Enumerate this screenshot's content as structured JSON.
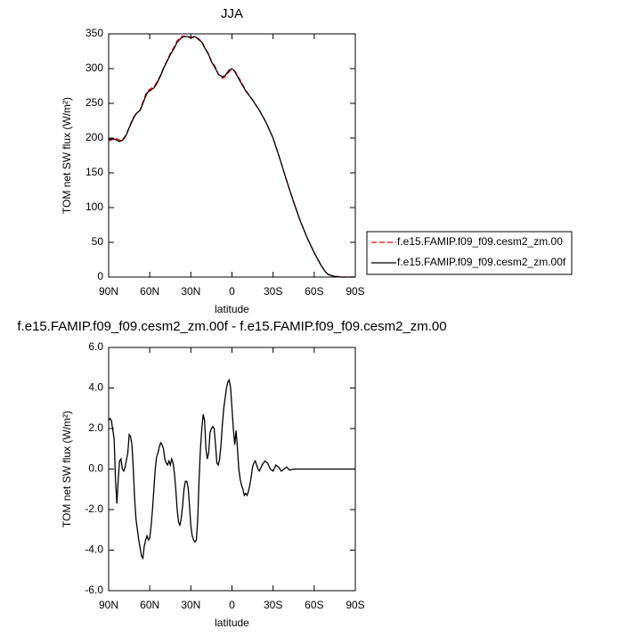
{
  "chart_data": [
    {
      "type": "line",
      "title": "JJA",
      "xlabel": "latitude",
      "ylabel": "TOM net SW flux (W/m²)",
      "x": [
        90,
        87,
        85,
        82,
        80,
        77,
        75,
        72,
        70,
        67,
        65,
        62,
        60,
        57,
        55,
        52,
        50,
        47,
        45,
        42,
        40,
        37,
        35,
        32,
        30,
        27,
        25,
        22,
        20,
        17,
        15,
        12,
        10,
        7,
        5,
        2,
        0,
        -2,
        -5,
        -8,
        -10,
        -15,
        -20,
        -25,
        -30,
        -35,
        -40,
        -45,
        -50,
        -55,
        -60,
        -65,
        -68,
        -70,
        -73,
        -75,
        -80,
        -85,
        -90
      ],
      "series": [
        {
          "name": "f.e15.FAMIP.f09_f09.cesm2_zm.00",
          "color": "#ff0000",
          "dash": true,
          "values": [
            196,
            198,
            200,
            197,
            196,
            204,
            216,
            230,
            234,
            241,
            252,
            268,
            270,
            274,
            280,
            291,
            301,
            313,
            322,
            332,
            340,
            346,
            347,
            345,
            344,
            345,
            344,
            339,
            331,
            321,
            311,
            302,
            292,
            286,
            288,
            296,
            298,
            297,
            287,
            276,
            269,
            255,
            240,
            222,
            200,
            170,
            138,
            108,
            80,
            56,
            35,
            17,
            8,
            4,
            2,
            1,
            0,
            0,
            0
          ]
        },
        {
          "name": "f.e15.FAMIP.f09_f09.cesm2_zm.00f",
          "color": "#000000",
          "dash": false,
          "values": [
            198,
            199,
            198,
            195,
            197,
            205,
            215,
            228,
            235,
            240,
            250,
            265,
            268,
            272,
            278,
            290,
            300,
            312,
            320,
            330,
            338,
            344,
            346,
            346,
            345,
            346,
            343,
            338,
            330,
            320,
            310,
            300,
            292,
            288,
            290,
            298,
            300,
            296,
            285,
            275,
            268,
            255,
            240,
            222,
            200,
            170,
            138,
            108,
            80,
            56,
            35,
            17,
            8,
            4,
            2,
            1,
            0,
            0,
            0
          ]
        }
      ],
      "xlim": [
        90,
        -90
      ],
      "xticks": [
        {
          "value": 90,
          "label": "90N"
        },
        {
          "value": 60,
          "label": "60N"
        },
        {
          "value": 30,
          "label": "30N"
        },
        0,
        {
          "value": -30,
          "label": "30S"
        },
        {
          "value": -60,
          "label": "60S"
        },
        {
          "value": -90,
          "label": "90S"
        }
      ],
      "ylim": [
        0,
        350
      ],
      "yticks": [
        0,
        50,
        100,
        150,
        200,
        250,
        300,
        350
      ],
      "legend": "right"
    },
    {
      "type": "line",
      "title": "f.e15.FAMIP.f09_f09.cesm2_zm.00f - f.e15.FAMIP.f09_f09.cesm2_zm.00",
      "xlabel": "latitude",
      "ylabel": "TOM net SW flux (W/m²)",
      "x": [
        90,
        89,
        88,
        86,
        85,
        84,
        83,
        82,
        81,
        80,
        79,
        78,
        76,
        75,
        74,
        73,
        72,
        71,
        70,
        68,
        66,
        65,
        64,
        63,
        62,
        61,
        60,
        59,
        58,
        57,
        56,
        55,
        54,
        53,
        52,
        51,
        50,
        49,
        48,
        47,
        46,
        45,
        44,
        43,
        42,
        41,
        40,
        39,
        38,
        37,
        36,
        35,
        34,
        33,
        32,
        31,
        30,
        29,
        28,
        27,
        26,
        25,
        24,
        23,
        22,
        21,
        20,
        19,
        18,
        17,
        16,
        15,
        14,
        13,
        12,
        11,
        10,
        9,
        8,
        7,
        6,
        5,
        4,
        3,
        2,
        1,
        0,
        -1,
        -2,
        -3,
        -4,
        -5,
        -6,
        -7,
        -8,
        -9,
        -10,
        -11,
        -12,
        -13,
        -14,
        -15,
        -16,
        -17,
        -18,
        -19,
        -20,
        -22,
        -24,
        -26,
        -28,
        -30,
        -32,
        -34,
        -36,
        -38,
        -40,
        -42,
        -45,
        -50,
        -60,
        -70,
        -80,
        -90
      ],
      "series": [
        {
          "color": "#000000",
          "dash": false,
          "values": [
            2.4,
            2.5,
            2.4,
            1.5,
            -0.5,
            -1.7,
            -0.5,
            0.4,
            0.5,
            0.0,
            -0.1,
            0.1,
            0.8,
            1.7,
            1.6,
            1.2,
            0.0,
            -1.5,
            -2.5,
            -3.5,
            -4.3,
            -4.4,
            -3.8,
            -3.5,
            -3.3,
            -3.5,
            -3.4,
            -2.8,
            -2.0,
            -1.0,
            0.0,
            0.6,
            0.8,
            1.1,
            1.3,
            1.2,
            1.0,
            0.5,
            0.3,
            0.2,
            0.4,
            0.2,
            0.5,
            0.3,
            -0.2,
            -1.0,
            -2.0,
            -2.6,
            -2.8,
            -2.4,
            -1.8,
            -1.0,
            -0.6,
            -0.6,
            -0.9,
            -1.8,
            -2.8,
            -3.3,
            -3.5,
            -3.6,
            -3.5,
            -2.5,
            -0.5,
            1.0,
            2.0,
            2.7,
            2.4,
            1.0,
            0.5,
            0.8,
            1.8,
            2.0,
            2.1,
            2.0,
            1.2,
            0.3,
            0.2,
            0.5,
            1.2,
            2.2,
            3.0,
            3.5,
            4.0,
            4.3,
            4.4,
            4.0,
            3.0,
            2.0,
            1.2,
            1.9,
            1.0,
            0.0,
            -0.5,
            -0.8,
            -1.0,
            -1.3,
            -1.2,
            -1.3,
            -1.1,
            -0.8,
            -0.4,
            0.1,
            0.3,
            0.4,
            0.2,
            0.0,
            -0.1,
            0.2,
            0.4,
            0.3,
            0.0,
            -0.1,
            0.2,
            0.1,
            -0.1,
            0.0,
            0.1,
            -0.05,
            0.0,
            0.0,
            0.0,
            0.0,
            0.0,
            0.0
          ]
        }
      ],
      "xlim": [
        90,
        -90
      ],
      "xticks": [
        {
          "value": 90,
          "label": "90N"
        },
        {
          "value": 60,
          "label": "60N"
        },
        {
          "value": 30,
          "label": "30N"
        },
        0,
        {
          "value": -30,
          "label": "30S"
        },
        {
          "value": -60,
          "label": "60S"
        },
        {
          "value": -90,
          "label": "90S"
        }
      ],
      "ylim": [
        -6,
        6
      ],
      "yticks": [
        {
          "value": -6,
          "label": "-6.0"
        },
        {
          "value": -4,
          "label": "-4.0"
        },
        {
          "value": -2,
          "label": "-2.0"
        },
        {
          "value": 0,
          "label": "0.0"
        },
        {
          "value": 2,
          "label": "2.0"
        },
        {
          "value": 4,
          "label": "4.0"
        },
        {
          "value": 6,
          "label": "6.0"
        }
      ]
    }
  ]
}
